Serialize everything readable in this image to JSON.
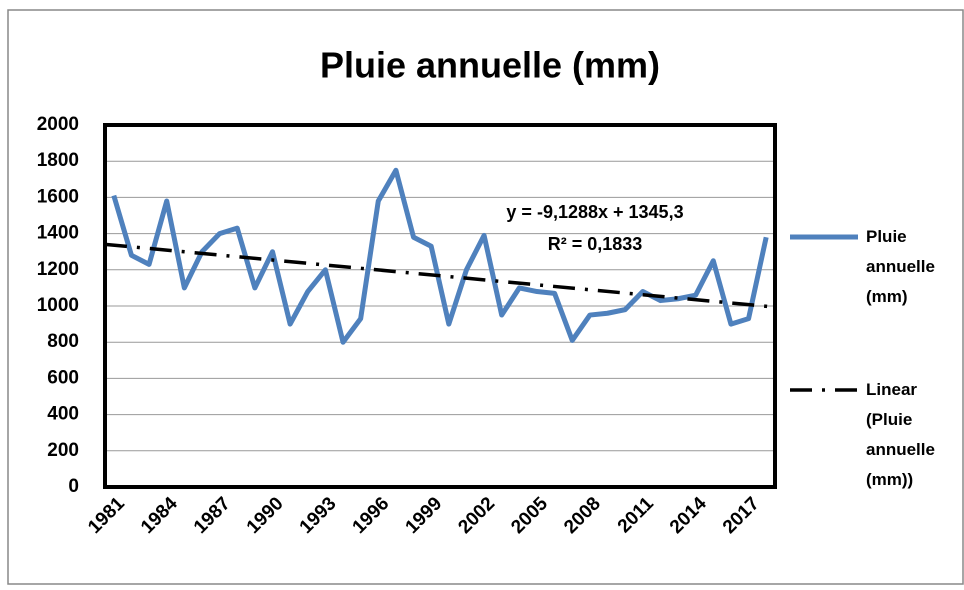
{
  "chart_data": {
    "type": "line",
    "title": "Pluie annuelle (mm)",
    "categories": [
      "1981",
      null,
      null,
      "1984",
      null,
      null,
      "1987",
      null,
      null,
      "1990",
      null,
      null,
      "1993",
      null,
      null,
      "1996",
      null,
      null,
      "1999",
      null,
      null,
      "2002",
      null,
      null,
      "2005",
      null,
      null,
      "2008",
      null,
      null,
      "2011",
      null,
      null,
      "2014",
      null,
      null,
      "2017",
      null
    ],
    "series": [
      {
        "name": "Pluie annuelle (mm)",
        "color": "#4f81bd",
        "values": [
          1610,
          1280,
          1230,
          1580,
          1100,
          1300,
          1400,
          1430,
          1100,
          1300,
          900,
          1080,
          1200,
          800,
          930,
          1580,
          1750,
          1380,
          1330,
          900,
          1200,
          1390,
          950,
          1100,
          1080,
          1070,
          810,
          950,
          960,
          980,
          1080,
          1030,
          1040,
          1060,
          1250,
          900,
          930,
          1380
        ]
      }
    ],
    "trendline": {
      "name": "Linear (Pluie annuelle (mm))",
      "color": "#000000",
      "slope": -9.1288,
      "intercept": 1345.3,
      "equation": "y = -9,1288x + 1345,3",
      "r2_label": "R² = 0,1833"
    },
    "ylim": [
      0,
      2000
    ],
    "yticks": [
      0,
      200,
      400,
      600,
      800,
      1000,
      1200,
      1400,
      1600,
      1800,
      2000
    ],
    "grid": true,
    "legend": "right"
  }
}
